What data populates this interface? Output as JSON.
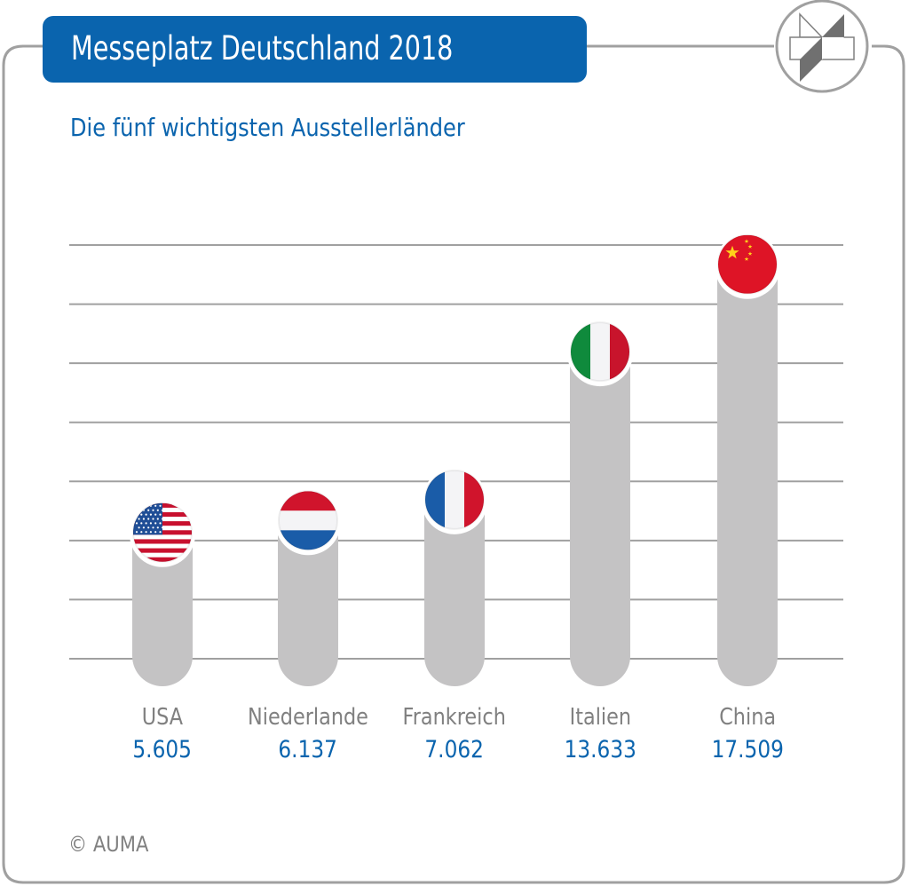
{
  "header": {
    "title": "Messeplatz Deutschland 2018",
    "logo_icon": "auma-logo-icon"
  },
  "footer": {
    "copyright": "© AUMA"
  },
  "colors": {
    "brand_blue": "#0a64ae",
    "bar_gray": "#c4c3c4",
    "grid_gray": "#a0a0a0",
    "label_gray": "#808080"
  },
  "chart_data": {
    "type": "bar",
    "title": "Messeplatz Deutschland 2018",
    "subtitle": "Die fünf wichtigsten Ausstellerländer",
    "xlabel": "",
    "ylabel": "",
    "categories": [
      "USA",
      "Niederlande",
      "Frankreich",
      "Italien",
      "China"
    ],
    "values": [
      5605,
      6137,
      7062,
      13633,
      17509
    ],
    "value_labels": [
      "5.605",
      "6.137",
      "7.062",
      "13.633",
      "17.509"
    ],
    "flags": [
      "flag-usa-icon",
      "flag-netherlands-icon",
      "flag-france-icon",
      "flag-italy-icon",
      "flag-china-icon"
    ],
    "ylim": [
      0,
      18000
    ],
    "grid": true,
    "gridline_count": 8,
    "y_tick_labels_shown": false,
    "legend": "none"
  }
}
